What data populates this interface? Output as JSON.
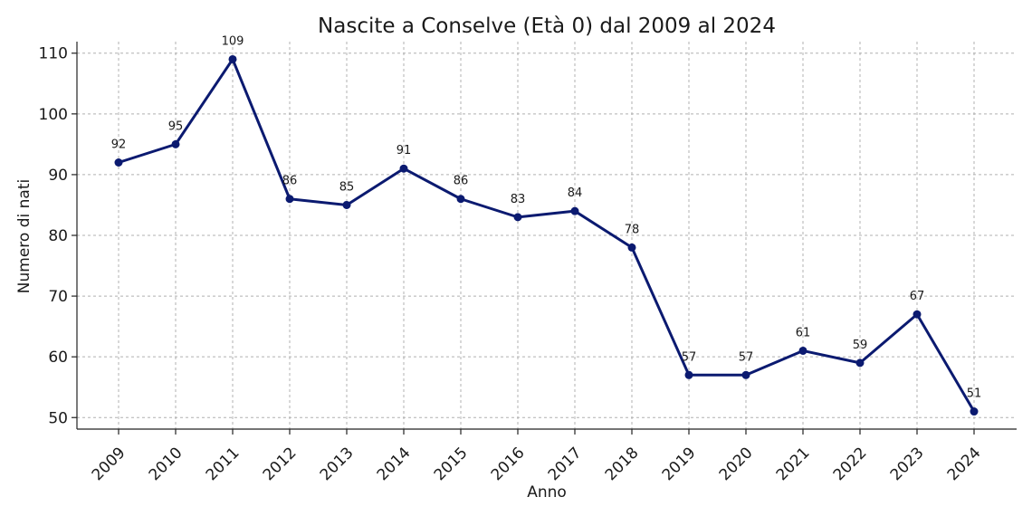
{
  "chart_data": {
    "type": "line",
    "title": "Nascite a Conselve (Età 0) dal 2009 al 2024",
    "xlabel": "Anno",
    "ylabel": "Numero di nati",
    "x": [
      "2009",
      "2010",
      "2011",
      "2012",
      "2013",
      "2014",
      "2015",
      "2016",
      "2017",
      "2018",
      "2019",
      "2020",
      "2021",
      "2022",
      "2023",
      "2024"
    ],
    "values": [
      92,
      95,
      109,
      86,
      85,
      91,
      86,
      83,
      84,
      78,
      57,
      57,
      61,
      59,
      67,
      51
    ],
    "data_labels": [
      "92",
      "95",
      "109",
      "86",
      "85",
      "91",
      "86",
      "83",
      "84",
      "78",
      "57",
      "57",
      "61",
      "59",
      "67",
      "51"
    ],
    "yticks": [
      50,
      60,
      70,
      80,
      90,
      100,
      110
    ],
    "ylim": [
      48.1,
      111.9
    ],
    "grid": true,
    "legend": "none",
    "line_color": "#0b1a70"
  }
}
